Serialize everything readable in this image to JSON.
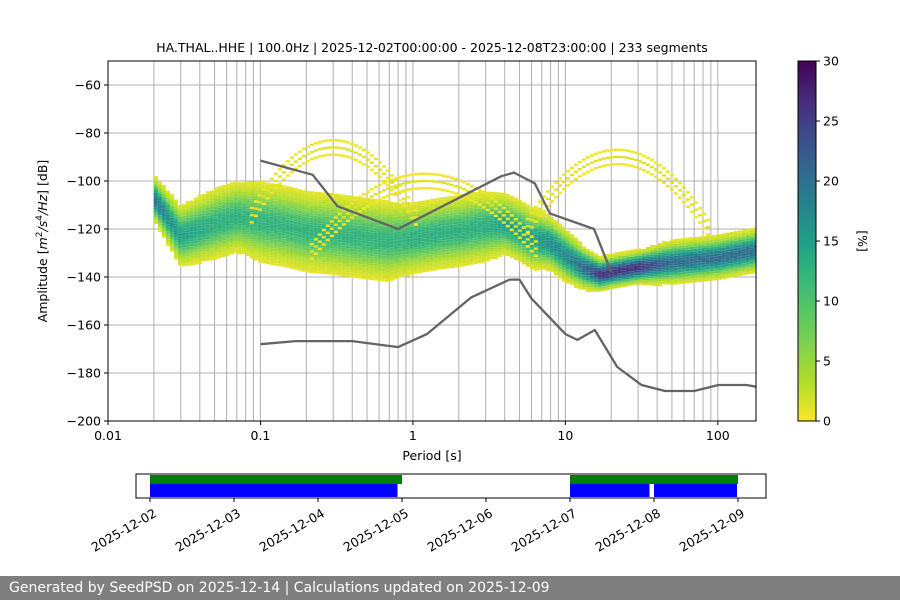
{
  "chart_data": [
    {
      "type": "heatmap",
      "title": "HA.THAL..HHE | 100.0Hz | 2025-12-02T00:00:00 - 2025-12-08T23:00:00 | 233 segments",
      "xlabel": "Period [s]",
      "ylabel_parts": [
        "Amplitude [",
        "m",
        "2",
        "/",
        "s",
        "4",
        "/",
        "Hz",
        "] [dB]"
      ],
      "xscale": "log",
      "xlim": [
        0.01,
        178
      ],
      "ylim": [
        -200,
        -50
      ],
      "x_tick_labels": [
        {
          "value": 0.01,
          "label": "0.01"
        },
        {
          "value": 0.1,
          "label": "0.1"
        },
        {
          "value": 1,
          "label": "1"
        },
        {
          "value": 10,
          "label": "10"
        },
        {
          "value": 100,
          "label": "100"
        }
      ],
      "y_tick_labels": [
        {
          "value": -60,
          "label": "−60"
        },
        {
          "value": -80,
          "label": "−80"
        },
        {
          "value": -100,
          "label": "−100"
        },
        {
          "value": -120,
          "label": "−120"
        },
        {
          "value": -140,
          "label": "−140"
        },
        {
          "value": -160,
          "label": "−160"
        },
        {
          "value": -180,
          "label": "−180"
        },
        {
          "value": -200,
          "label": "−200"
        }
      ],
      "grid": true,
      "colormap": "viridis_r",
      "colorbar": {
        "label": "[%]",
        "range": [
          0,
          30
        ],
        "ticks": [
          {
            "value": 0,
            "label": "0"
          },
          {
            "value": 5,
            "label": "5"
          },
          {
            "value": 10,
            "label": "10"
          },
          {
            "value": 15,
            "label": "15"
          },
          {
            "value": 20,
            "label": "20"
          },
          {
            "value": 25,
            "label": "25"
          },
          {
            "value": 30,
            "label": "30"
          }
        ]
      },
      "psd_mode": {
        "period": [
          0.02,
          0.03,
          0.05,
          0.07,
          0.1,
          0.15,
          0.2,
          0.3,
          0.5,
          0.7,
          1.0,
          1.5,
          2.0,
          3.0,
          4.0,
          5.0,
          6.0,
          8.0,
          10.0,
          13.0,
          17.0,
          20.0,
          30.0,
          50.0,
          100.0,
          178.0
        ],
        "db": [
          -107,
          -123,
          -118,
          -115,
          -117,
          -119,
          -121,
          -122,
          -124,
          -125,
          -124,
          -122,
          -121,
          -119,
          -118,
          -121,
          -124,
          -126,
          -131,
          -136,
          -139,
          -138,
          -136,
          -134,
          -132,
          -129
        ]
      },
      "psd_spread": {
        "period": [
          0.02,
          0.03,
          0.05,
          0.07,
          0.1,
          0.15,
          0.2,
          0.3,
          0.5,
          0.7,
          1.0,
          1.5,
          2.0,
          3.0,
          4.0,
          5.0,
          6.0,
          8.0,
          10.0,
          13.0,
          17.0,
          20.0,
          30.0,
          50.0,
          100.0,
          178.0
        ],
        "db": [
          4,
          6,
          7,
          7,
          8,
          8,
          8,
          8,
          8,
          8,
          7,
          7,
          7,
          7,
          6,
          6,
          6,
          5,
          5,
          4,
          3,
          3,
          3,
          4,
          4,
          4
        ]
      },
      "sparse_arcs": [
        {
          "center_period": 0.3,
          "peak_db": -86,
          "half_width_decades": 0.55
        },
        {
          "center_period": 1.2,
          "peak_db": -100,
          "half_width_decades": 0.75
        },
        {
          "center_period": 22.0,
          "peak_db": -90,
          "half_width_decades": 0.6
        }
      ],
      "noise_models": [
        {
          "name": "NHNM",
          "period": [
            0.1,
            0.22,
            0.32,
            0.8,
            3.8,
            4.6,
            6.3,
            7.9,
            15.4,
            20.0
          ],
          "db": [
            -91.5,
            -97.4,
            -110.5,
            -120.0,
            -98.0,
            -96.5,
            -101.0,
            -113.5,
            -120.0,
            -138.0
          ]
        },
        {
          "name": "NLNM",
          "period": [
            0.1,
            0.17,
            0.4,
            0.8,
            1.24,
            2.4,
            4.3,
            5.0,
            6.0,
            10.0,
            12.0,
            15.6,
            21.9,
            31.6,
            45.0,
            70.0,
            101.0,
            154.0,
            178.0
          ],
          "db": [
            -168.0,
            -166.7,
            -166.7,
            -169.2,
            -163.7,
            -148.6,
            -141.1,
            -141.1,
            -149.0,
            -163.8,
            -166.2,
            -162.1,
            -177.5,
            -185.0,
            -187.5,
            -187.5,
            -185.0,
            -185.0,
            -185.7
          ]
        }
      ]
    },
    {
      "type": "bar",
      "subtype": "data-availability-timeline",
      "xlim": [
        "2025-12-01T20:00",
        "2025-12-09T08:00"
      ],
      "x_tick_labels": [
        "2025-12-02",
        "2025-12-03",
        "2025-12-04",
        "2025-12-05",
        "2025-12-06",
        "2025-12-07",
        "2025-12-08",
        "2025-12-09"
      ],
      "rows": [
        {
          "row": "top",
          "color": "#008000",
          "intervals": [
            [
              "2025-12-02T00:00",
              "2025-12-05T00:00"
            ],
            [
              "2025-12-07T00:00",
              "2025-12-09T00:00"
            ]
          ]
        },
        {
          "row": "bottom",
          "color": "#0000ff",
          "intervals": [
            [
              "2025-12-02T00:00",
              "2025-12-04T23:00"
            ],
            [
              "2025-12-07T00:00",
              "2025-12-07T23:00"
            ],
            [
              "2025-12-08T00:00",
              "2025-12-09T00:00"
            ]
          ]
        }
      ]
    }
  ],
  "footer": {
    "text": "Generated by SeedPSD on 2025-12-14 | Calculations updated on 2025-12-09"
  },
  "colors": {
    "noise_model": "#646464",
    "grid": "#b0b0b0",
    "footer_bg": "#7f7f7f"
  }
}
